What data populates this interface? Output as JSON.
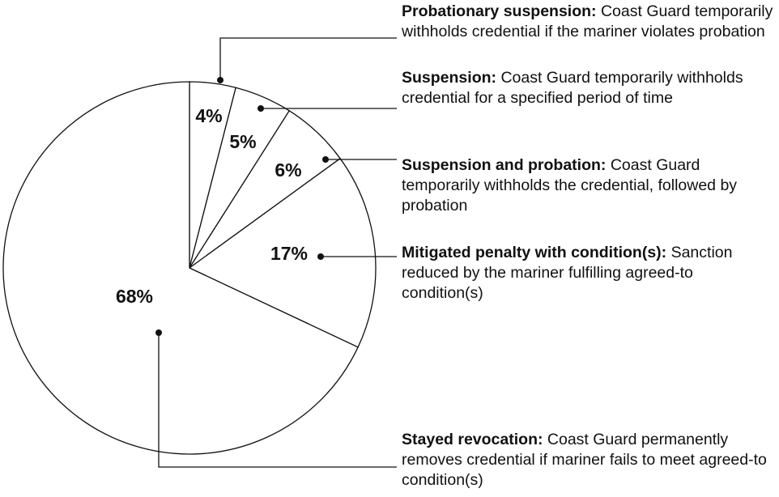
{
  "chart_data": {
    "type": "pie",
    "categories": [
      "Probationary suspension:",
      "Suspension:",
      "Suspension and probation:",
      "Mitigated penalty with condition(s):",
      "Stayed revocation:"
    ],
    "descriptions": [
      "Coast Guard temporarily withholds credential if the mariner violates probation",
      "Coast Guard temporarily withholds credential for a specified period of time",
      "Coast Guard temporarily withholds the credential, followed by probation",
      "Sanction reduced by the mariner fulfilling agreed-to condition(s)",
      "Coast Guard permanently removes credential if mariner fails to meet agreed-to condition(s)"
    ],
    "values": [
      4,
      5,
      6,
      17,
      68
    ],
    "value_labels": [
      "4%",
      "5%",
      "6%",
      "17%",
      "68%"
    ],
    "color": "#ffffff"
  }
}
